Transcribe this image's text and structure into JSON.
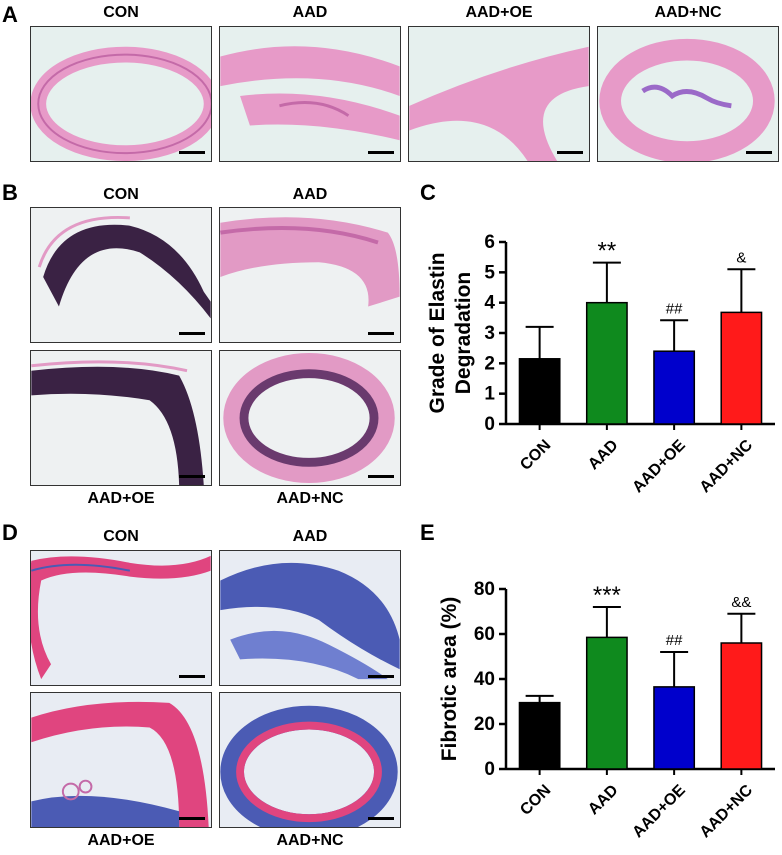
{
  "panels": {
    "A": {
      "letter": "A",
      "labels": [
        "CON",
        "AAD",
        "AAD+OE",
        "AAD+NC"
      ]
    },
    "B": {
      "letter": "B",
      "labels": [
        "CON",
        "AAD",
        "AAD+OE",
        "AAD+NC"
      ]
    },
    "C": {
      "letter": "C"
    },
    "D": {
      "letter": "D",
      "labels": [
        "CON",
        "AAD",
        "AAD+OE",
        "AAD+NC"
      ]
    },
    "E": {
      "letter": "E"
    }
  },
  "colors": {
    "he_bg": "#e6f0ee",
    "he_tissue": "#e79ac8",
    "he_dark": "#c46aa8",
    "evg_bg": "#eef1f2",
    "evg_dark": "#3a2244",
    "evg_pink": "#e29ac5",
    "masson_bg": "#e8ecf3",
    "masson_red": "#e0457f",
    "masson_blue": "#4b5bb4",
    "bar_con": "#000000",
    "bar_aad": "#0f8a1e",
    "bar_oe": "#0000cc",
    "bar_nc": "#ff1a1a"
  },
  "chart_data": [
    {
      "type": "bar",
      "panel": "C",
      "categories": [
        "CON",
        "AAD",
        "AAD+OE",
        "AAD+NC"
      ],
      "values": [
        2.15,
        4.0,
        2.4,
        3.68
      ],
      "errors": [
        1.05,
        1.32,
        1.02,
        1.42
      ],
      "colors": [
        "#000000",
        "#0f8a1e",
        "#0000cc",
        "#ff1a1a"
      ],
      "annotations": [
        "",
        "**",
        "##",
        "&"
      ],
      "ylabel_line1": "Grade of Elastin",
      "ylabel_line2": "Degradation",
      "ylim": [
        0,
        6
      ],
      "yticks": [
        0,
        1,
        2,
        3,
        4,
        5,
        6
      ]
    },
    {
      "type": "bar",
      "panel": "E",
      "categories": [
        "CON",
        "AAD",
        "AAD+OE",
        "AAD+NC"
      ],
      "values": [
        29.5,
        58.5,
        36.5,
        56.0
      ],
      "errors": [
        3.0,
        13.5,
        15.5,
        13.0
      ],
      "colors": [
        "#000000",
        "#0f8a1e",
        "#0000cc",
        "#ff1a1a"
      ],
      "annotations": [
        "",
        "***",
        "##",
        "&&"
      ],
      "ylabel": "Fibrotic area (%)",
      "ylim": [
        0,
        80
      ],
      "yticks": [
        0,
        20,
        40,
        60,
        80
      ]
    }
  ]
}
